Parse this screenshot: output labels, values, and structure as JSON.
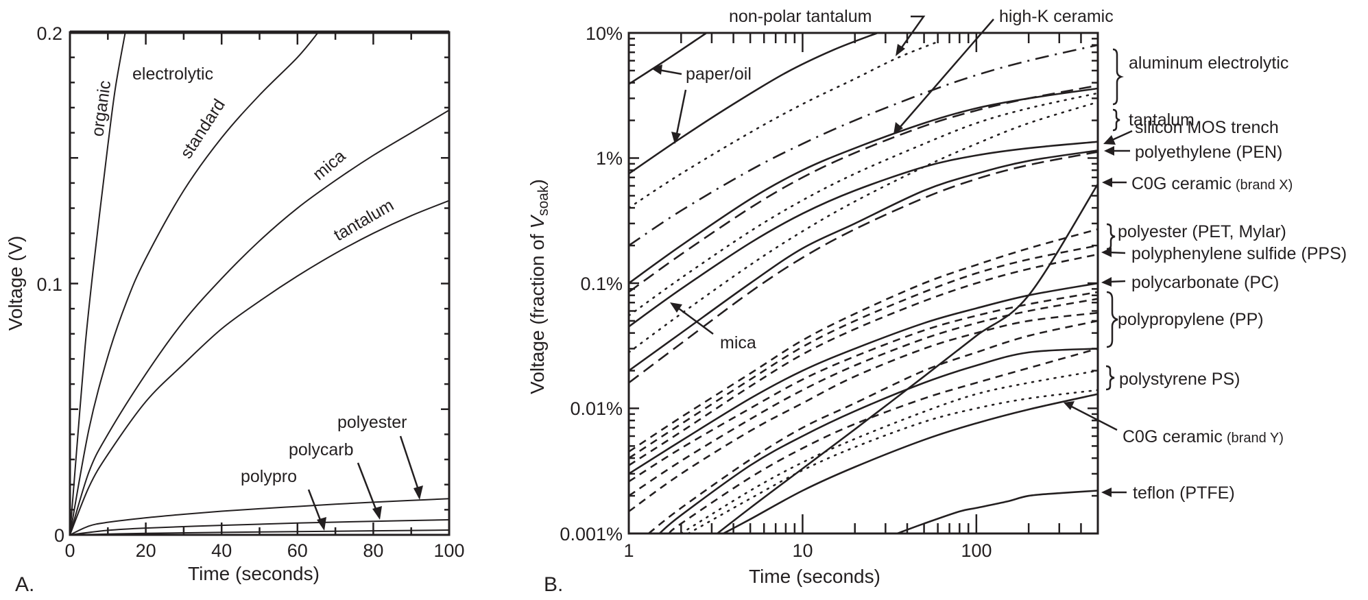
{
  "chart_data": [
    {
      "panel": "A.",
      "type": "line",
      "title": "",
      "xlabel": "Time (seconds)",
      "ylabel": "Voltage (V)",
      "xlim": [
        0,
        100
      ],
      "ylim": [
        0,
        0.2
      ],
      "x_ticks": [
        "0",
        "20",
        "40",
        "60",
        "80",
        "100"
      ],
      "y_ticks": [
        "0",
        "0.1",
        "0.2"
      ],
      "x_tick_values": [
        0,
        20,
        40,
        60,
        80,
        100
      ],
      "y_tick_values": [
        0,
        0.1,
        0.2
      ],
      "grid": false,
      "group_labels": [
        {
          "text": "electrolytic"
        }
      ],
      "series": [
        {
          "name": "organic",
          "label_style": "along-curve",
          "x": [
            0,
            2,
            4,
            6,
            8,
            10,
            12,
            14.6
          ],
          "y": [
            0,
            0.038,
            0.075,
            0.104,
            0.13,
            0.155,
            0.178,
            0.2
          ]
        },
        {
          "name": "standard",
          "label_style": "along-curve",
          "x": [
            0,
            5,
            10,
            15,
            20,
            30,
            40,
            50,
            60,
            65.5
          ],
          "y": [
            0,
            0.042,
            0.071,
            0.093,
            0.11,
            0.137,
            0.158,
            0.175,
            0.19,
            0.2
          ]
        },
        {
          "name": "mica",
          "label_style": "along-curve",
          "x": [
            0,
            5,
            10,
            20,
            30,
            40,
            50,
            60,
            70,
            80,
            90,
            100
          ],
          "y": [
            0,
            0.025,
            0.04,
            0.064,
            0.085,
            0.102,
            0.117,
            0.13,
            0.141,
            0.151,
            0.16,
            0.169
          ]
        },
        {
          "name": "tantalum",
          "label_style": "along-curve",
          "x": [
            0,
            5,
            10,
            20,
            30,
            40,
            50,
            60,
            70,
            80,
            90,
            100
          ],
          "y": [
            0,
            0.019,
            0.032,
            0.053,
            0.068,
            0.082,
            0.093,
            0.103,
            0.112,
            0.12,
            0.127,
            0.133
          ]
        },
        {
          "name": "polyester",
          "label_style": "arrow",
          "x": [
            0,
            5,
            10,
            20,
            30,
            40,
            50,
            60,
            70,
            80,
            90,
            100
          ],
          "y": [
            0,
            0.0035,
            0.005,
            0.0068,
            0.0082,
            0.0094,
            0.0104,
            0.0113,
            0.0122,
            0.013,
            0.0137,
            0.0144
          ]
        },
        {
          "name": "polycarb",
          "label_style": "arrow",
          "x": [
            0,
            10,
            20,
            40,
            60,
            80,
            100
          ],
          "y": [
            0,
            0.0018,
            0.0027,
            0.0038,
            0.0047,
            0.0054,
            0.006
          ]
        },
        {
          "name": "polypro",
          "label_style": "arrow",
          "x": [
            0,
            20,
            40,
            60,
            80,
            100
          ],
          "y": [
            0,
            0.0006,
            0.001,
            0.0013,
            0.0016,
            0.0019
          ]
        }
      ]
    },
    {
      "panel": "B.",
      "type": "line",
      "title": "",
      "xlabel": "Time (seconds)",
      "ylabel_main": "Voltage (fraction of ",
      "ylabel_var": "V",
      "ylabel_sub": "soak",
      "ylabel_end": ")",
      "xscale": "log",
      "yscale": "log",
      "xlim": [
        1,
        500
      ],
      "ylim_percent": [
        0.001,
        10
      ],
      "x_ticks": [
        "1",
        "10",
        "100"
      ],
      "x_tick_values": [
        1,
        10,
        100
      ],
      "y_ticks": [
        "10%",
        "1%",
        "0.1%",
        "0.01%",
        "0.001%"
      ],
      "y_tick_values": [
        10,
        1,
        0.1,
        0.01,
        0.001
      ],
      "grid": false,
      "series": [
        {
          "name": "paper/oil (upper)",
          "style": "solid",
          "x": [
            1,
            1.5,
            2,
            2.8
          ],
          "y": [
            3.9,
            5.6,
            7.3,
            10
          ]
        },
        {
          "name": "paper/oil (lower)",
          "style": "solid",
          "x": [
            1,
            2,
            4,
            8,
            15,
            27
          ],
          "y": [
            0.75,
            1.45,
            2.7,
            4.8,
            7.3,
            10
          ]
        },
        {
          "name": "non-polar tantalum",
          "style": "dotted",
          "x": [
            1,
            2,
            5,
            10,
            20,
            35,
            60
          ],
          "y": [
            0.4,
            0.75,
            1.6,
            2.7,
            4.3,
            6.3,
            8.5
          ]
        },
        {
          "name": "aluminum electrolytic (a)",
          "style": "dash-dot",
          "x": [
            1,
            2,
            5,
            10,
            20,
            50,
            100,
            200,
            500
          ],
          "y": [
            0.2,
            0.38,
            0.8,
            1.3,
            2.0,
            3.3,
            4.6,
            6.0,
            8.0
          ]
        },
        {
          "name": "aluminum electrolytic (b)",
          "style": "long-dash",
          "x": [
            1,
            2,
            5,
            10,
            20,
            50,
            100,
            200,
            500
          ],
          "y": [
            0.085,
            0.17,
            0.4,
            0.7,
            1.1,
            1.8,
            2.4,
            3.0,
            3.8
          ]
        },
        {
          "name": "high-K ceramic",
          "style": "solid",
          "x": [
            1,
            2,
            5,
            10,
            20,
            50,
            100,
            200,
            500
          ],
          "y": [
            0.1,
            0.2,
            0.47,
            0.8,
            1.2,
            1.9,
            2.5,
            3.0,
            3.6
          ]
        },
        {
          "name": "tantalum (a)",
          "style": "dotted",
          "x": [
            1,
            2,
            5,
            10,
            20,
            50,
            100,
            200,
            500
          ],
          "y": [
            0.055,
            0.11,
            0.26,
            0.46,
            0.75,
            1.3,
            1.9,
            2.5,
            3.3
          ]
        },
        {
          "name": "tantalum (b)",
          "style": "dotted",
          "x": [
            1,
            2,
            5,
            10,
            20,
            50,
            100,
            200,
            500
          ],
          "y": [
            0.028,
            0.057,
            0.14,
            0.26,
            0.45,
            0.85,
            1.3,
            1.9,
            2.8
          ]
        },
        {
          "name": "silicon MOS trench",
          "style": "solid",
          "x": [
            1,
            2,
            5,
            10,
            20,
            50,
            100,
            200,
            500
          ],
          "y": [
            0.045,
            0.09,
            0.21,
            0.36,
            0.55,
            0.85,
            1.05,
            1.2,
            1.35
          ]
        },
        {
          "name": "mica (a)",
          "style": "solid",
          "x": [
            1,
            2,
            5,
            10,
            20,
            50,
            100,
            200,
            500
          ],
          "y": [
            0.02,
            0.04,
            0.1,
            0.19,
            0.3,
            0.55,
            0.75,
            0.95,
            1.15
          ]
        },
        {
          "name": "polyethylene (PEN)",
          "style": "long-dash",
          "x": [
            1,
            2,
            5,
            10,
            20,
            50,
            100,
            200,
            500
          ],
          "y": [
            0.016,
            0.033,
            0.085,
            0.16,
            0.27,
            0.48,
            0.68,
            0.88,
            1.12
          ]
        },
        {
          "name": "C0G ceramic (brand X)",
          "style": "solid",
          "x": [
            1,
            2,
            5,
            10,
            20,
            50,
            100,
            200,
            500
          ],
          "y": [
            0.0003,
            0.0006,
            0.0016,
            0.0033,
            0.0068,
            0.018,
            0.038,
            0.08,
            0.62
          ]
        },
        {
          "name": "polyester (PET, Mylar) (a)",
          "style": "dashed",
          "x": [
            1,
            2,
            5,
            10,
            20,
            50,
            100,
            200,
            500
          ],
          "y": [
            0.0045,
            0.0085,
            0.019,
            0.035,
            0.057,
            0.1,
            0.14,
            0.19,
            0.27
          ]
        },
        {
          "name": "polyester (PET, Mylar) (b)",
          "style": "dashed",
          "x": [
            1,
            2,
            5,
            10,
            20,
            50,
            100,
            200,
            500
          ],
          "y": [
            0.004,
            0.0075,
            0.017,
            0.031,
            0.05,
            0.085,
            0.12,
            0.155,
            0.2
          ]
        },
        {
          "name": "polyphenylene sulfide (PPS)",
          "style": "dashed",
          "x": [
            1,
            2,
            5,
            10,
            20,
            50,
            100,
            200,
            500
          ],
          "y": [
            0.0035,
            0.0065,
            0.015,
            0.027,
            0.043,
            0.072,
            0.1,
            0.13,
            0.17
          ]
        },
        {
          "name": "polycarbonate (PC)",
          "style": "solid",
          "x": [
            1,
            2,
            5,
            10,
            20,
            50,
            100,
            200,
            500
          ],
          "y": [
            0.003,
            0.0055,
            0.012,
            0.02,
            0.03,
            0.048,
            0.063,
            0.08,
            0.1
          ]
        },
        {
          "name": "polypropylene (PP) (a)",
          "style": "dashed",
          "x": [
            1,
            2,
            5,
            10,
            20,
            50,
            100,
            200,
            500
          ],
          "y": [
            0.0026,
            0.0048,
            0.01,
            0.017,
            0.026,
            0.042,
            0.055,
            0.068,
            0.085
          ]
        },
        {
          "name": "polypropylene (PP) (b)",
          "style": "dashed",
          "x": [
            1,
            2,
            5,
            10,
            20,
            50,
            100,
            200,
            500
          ],
          "y": [
            0.002,
            0.0038,
            0.0082,
            0.014,
            0.022,
            0.036,
            0.048,
            0.06,
            0.075
          ]
        },
        {
          "name": "polypropylene (PP) (c)",
          "style": "dashed",
          "x": [
            1,
            2,
            5,
            10,
            20,
            50,
            100,
            200,
            500
          ],
          "y": [
            0.0015,
            0.003,
            0.0066,
            0.011,
            0.018,
            0.03,
            0.04,
            0.05,
            0.058
          ]
        },
        {
          "name": "polypropylene (PP) (d)",
          "style": "dashed",
          "x": [
            1.3,
            2,
            5,
            10,
            20,
            50,
            100,
            200,
            500
          ],
          "y": [
            0.001,
            0.0016,
            0.0039,
            0.007,
            0.011,
            0.02,
            0.028,
            0.038,
            0.05
          ]
        },
        {
          "name": "polypropylene (PP) (e)",
          "style": "solid-wavy",
          "x": [
            1.5,
            2,
            5,
            10,
            20,
            50,
            100,
            200,
            500
          ],
          "y": [
            0.001,
            0.0014,
            0.0035,
            0.006,
            0.0095,
            0.016,
            0.022,
            0.028,
            0.03
          ]
        },
        {
          "name": "polystyrene PS (a)",
          "style": "dashed",
          "x": [
            1.7,
            2,
            5,
            10,
            20,
            50,
            100,
            200,
            500
          ],
          "y": [
            0.001,
            0.0012,
            0.0028,
            0.0048,
            0.0075,
            0.012,
            0.016,
            0.021,
            0.03
          ]
        },
        {
          "name": "polystyrene PS (b)",
          "style": "dotted",
          "x": [
            2,
            5,
            10,
            20,
            50,
            100,
            200,
            500
          ],
          "y": [
            0.001,
            0.0022,
            0.0037,
            0.0057,
            0.0094,
            0.013,
            0.016,
            0.02
          ]
        },
        {
          "name": "polystyrene PS (c)",
          "style": "dotted",
          "x": [
            2.2,
            5,
            10,
            20,
            50,
            100,
            200,
            500
          ],
          "y": [
            0.001,
            0.0019,
            0.0032,
            0.0049,
            0.0078,
            0.01,
            0.012,
            0.014
          ]
        },
        {
          "name": "C0G ceramic (brand Y)",
          "style": "solid",
          "x": [
            3.5,
            5,
            10,
            20,
            50,
            100,
            200,
            500
          ],
          "y": [
            0.001,
            0.0013,
            0.0022,
            0.0034,
            0.0056,
            0.0076,
            0.0098,
            0.013
          ]
        },
        {
          "name": "teflon (PTFE)",
          "style": "solid",
          "x": [
            35,
            50,
            80,
            100,
            150,
            200,
            300,
            500
          ],
          "y": [
            0.001,
            0.0012,
            0.0015,
            0.0016,
            0.0018,
            0.002,
            0.0021,
            0.0022
          ]
        }
      ],
      "annotations": {
        "top": [
          "non-polar tantalum",
          "high-K ceramic"
        ],
        "inside": [
          "paper/oil",
          "mica"
        ],
        "right": [
          {
            "text": "aluminum electrolytic",
            "marker": "brace"
          },
          {
            "text": "tantalum",
            "marker": "brace"
          },
          {
            "text": "silicon MOS trench",
            "marker": "arrow"
          },
          {
            "text": "polyethylene (PEN)",
            "marker": "arrow"
          },
          {
            "text": "C0G ceramic",
            "small": "(brand X)",
            "marker": "arrow"
          },
          {
            "text": "polyester (PET, Mylar)",
            "marker": "brace"
          },
          {
            "text": "polyphenylene sulfide (PPS)",
            "marker": "arrow"
          },
          {
            "text": "polycarbonate (PC)",
            "marker": "arrow"
          },
          {
            "text": "polypropylene (PP)",
            "marker": "brace"
          },
          {
            "text": "polystyrene PS)",
            "marker": "brace"
          },
          {
            "text": "C0G ceramic",
            "small": "(brand Y)",
            "marker": "arrow"
          },
          {
            "text": "teflon (PTFE)",
            "marker": "arrow"
          }
        ]
      }
    }
  ]
}
